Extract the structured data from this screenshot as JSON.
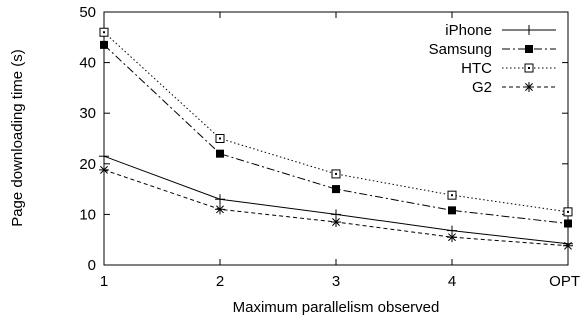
{
  "chart_data": {
    "type": "line",
    "categories": [
      "1",
      "2",
      "3",
      "4",
      "OPT"
    ],
    "xlabel": "Maximum parallelism observed",
    "ylabel": "Page downloading time (s)",
    "ylim": [
      0,
      50
    ],
    "yticks": [
      0,
      10,
      20,
      30,
      40,
      50
    ],
    "grid": false,
    "legend_position": "top-right",
    "series": [
      {
        "name": "iPhone",
        "marker": "plus",
        "dash": "solid",
        "values": [
          21.5,
          13,
          10,
          6.8,
          4.2
        ]
      },
      {
        "name": "Samsung",
        "marker": "filled-square",
        "dash": "dashdot",
        "values": [
          43.5,
          22,
          15,
          10.8,
          8.2
        ]
      },
      {
        "name": "HTC",
        "marker": "open-square",
        "dash": "dotted",
        "values": [
          46,
          25,
          18,
          13.8,
          10.5
        ]
      },
      {
        "name": "G2",
        "marker": "asterisk",
        "dash": "dashed",
        "values": [
          18.8,
          11,
          8.5,
          5.5,
          3.8
        ]
      }
    ]
  }
}
